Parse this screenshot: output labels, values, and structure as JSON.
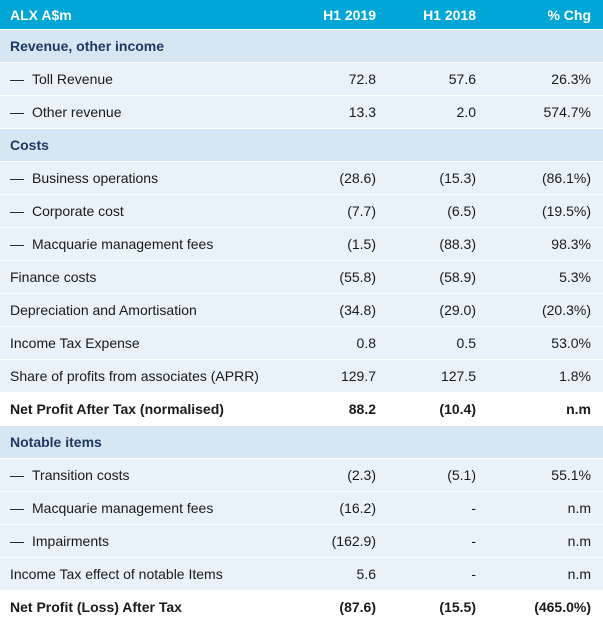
{
  "header": {
    "title": "ALX A$m",
    "col1": "H1 2019",
    "col2": "H1 2018",
    "col3": "% Chg"
  },
  "rows": [
    {
      "type": "section",
      "label": "Revenue, other income"
    },
    {
      "type": "indent",
      "label": "Toll Revenue",
      "v1": "72.8",
      "v2": "57.6",
      "v3": "26.3%"
    },
    {
      "type": "indent",
      "label": "Other revenue",
      "v1": "13.3",
      "v2": "2.0",
      "v3": "574.7%"
    },
    {
      "type": "section",
      "label": "Costs"
    },
    {
      "type": "indent",
      "label": "Business operations",
      "v1": "(28.6)",
      "v2": "(15.3)",
      "v3": "(86.1%)"
    },
    {
      "type": "indent",
      "label": "Corporate cost",
      "v1": "(7.7)",
      "v2": "(6.5)",
      "v3": "(19.5%)"
    },
    {
      "type": "indent",
      "label": "Macquarie management fees",
      "v1": "(1.5)",
      "v2": "(88.3)",
      "v3": "98.3%"
    },
    {
      "type": "plain",
      "label": "Finance costs",
      "v1": "(55.8)",
      "v2": "(58.9)",
      "v3": "5.3%"
    },
    {
      "type": "plain",
      "label": "Depreciation and Amortisation",
      "v1": "(34.8)",
      "v2": "(29.0)",
      "v3": "(20.3%)"
    },
    {
      "type": "plain",
      "label": "Income Tax Expense",
      "v1": "0.8",
      "v2": "0.5",
      "v3": "53.0%"
    },
    {
      "type": "plain",
      "label": "Share of profits from associates (APRR)",
      "v1": "129.7",
      "v2": "127.5",
      "v3": "1.8%"
    },
    {
      "type": "total",
      "label": "Net Profit After Tax (normalised)",
      "v1": "88.2",
      "v2": "(10.4)",
      "v3": "n.m"
    },
    {
      "type": "section",
      "label": "Notable items"
    },
    {
      "type": "indent",
      "label": "Transition costs",
      "v1": "(2.3)",
      "v2": "(5.1)",
      "v3": "55.1%"
    },
    {
      "type": "indent",
      "label": "Macquarie management fees",
      "v1": "(16.2)",
      "v2": "-",
      "v3": "n.m"
    },
    {
      "type": "indent",
      "label": "Impairments",
      "v1": "(162.9)",
      "v2": "-",
      "v3": "n.m"
    },
    {
      "type": "plain",
      "label": "Income Tax effect of notable Items",
      "v1": "5.6",
      "v2": "-",
      "v3": "n.m"
    },
    {
      "type": "total",
      "label": "Net Profit (Loss) After Tax",
      "v1": "(87.6)",
      "v2": "(15.5)",
      "v3": "(465.0%)"
    }
  ]
}
